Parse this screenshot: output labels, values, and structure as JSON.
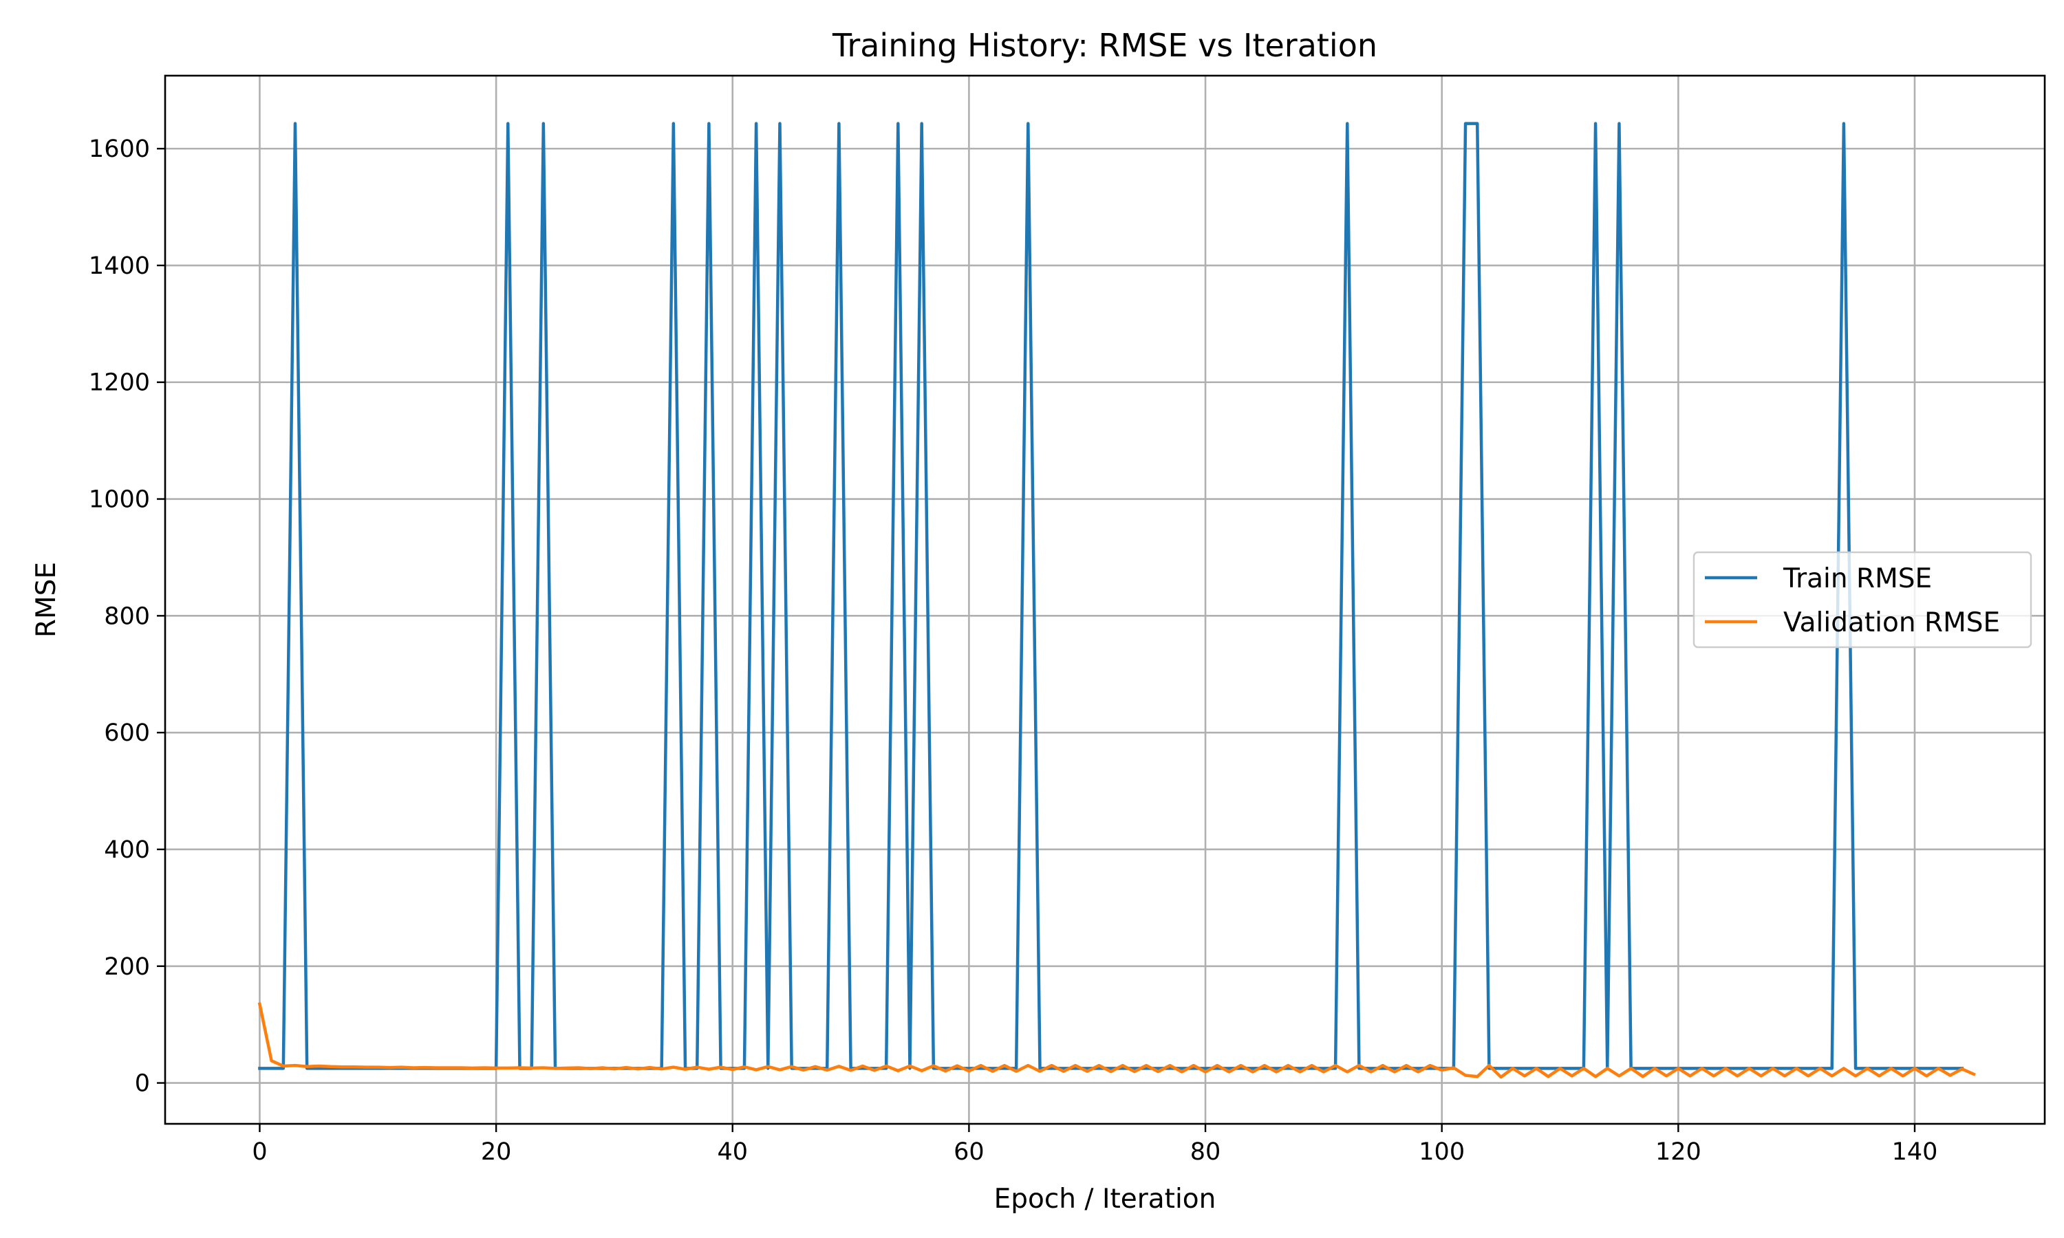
{
  "chart_data": {
    "type": "line",
    "title": "Training History: RMSE vs Iteration",
    "xlabel": "Epoch / Iteration",
    "ylabel": "RMSE",
    "xlim": [
      -8,
      151
    ],
    "ylim": [
      -70,
      1725
    ],
    "xticks": [
      0,
      20,
      40,
      60,
      80,
      100,
      120,
      140
    ],
    "yticks": [
      0,
      200,
      400,
      600,
      800,
      1000,
      1200,
      1400,
      1600
    ],
    "grid": true,
    "legend_position": "center-right",
    "series": [
      {
        "name": "Train RMSE",
        "color": "#1f77b4",
        "base": 25,
        "spike_value": 1643,
        "spike_x": [
          3,
          21,
          24,
          35,
          38,
          42,
          44,
          49,
          54,
          56,
          65,
          92,
          102,
          103,
          113,
          115,
          134
        ],
        "n_points": 145
      },
      {
        "name": "Validation RMSE",
        "color": "#ff7f0e",
        "values": [
          135,
          38,
          29,
          30,
          28,
          29,
          28,
          27.5,
          27.5,
          27,
          27,
          26.5,
          27,
          26,
          26.5,
          26,
          26,
          26,
          25.5,
          26,
          25.5,
          25.5,
          26,
          25.5,
          26,
          25,
          25.5,
          26,
          24.5,
          26,
          24,
          26.5,
          24,
          26.5,
          24,
          27,
          23.5,
          27,
          23.5,
          27,
          23,
          27.5,
          22.5,
          28,
          22.5,
          28,
          22,
          28,
          22,
          28.5,
          21.5,
          29,
          21.5,
          29,
          21,
          29,
          21,
          29.5,
          20.5,
          29.5,
          20.5,
          30,
          20,
          30,
          20,
          30,
          20,
          30,
          20,
          30,
          20,
          30,
          19.5,
          30,
          19.5,
          30,
          19.5,
          30,
          19,
          30,
          19,
          30,
          19,
          30,
          19,
          30,
          19,
          30,
          19,
          30,
          19,
          30,
          19,
          30,
          19,
          30,
          19,
          30,
          19,
          30,
          22,
          26,
          13,
          11,
          30,
          10,
          25,
          12,
          25,
          11,
          25,
          12,
          25,
          11,
          25,
          12,
          25,
          11,
          25,
          12,
          25,
          12,
          25,
          12,
          25,
          12,
          25,
          12,
          25,
          12,
          25,
          12,
          25,
          12,
          25,
          12,
          25,
          12,
          25,
          12,
          25,
          12,
          25,
          13,
          24,
          15
        ]
      }
    ]
  }
}
